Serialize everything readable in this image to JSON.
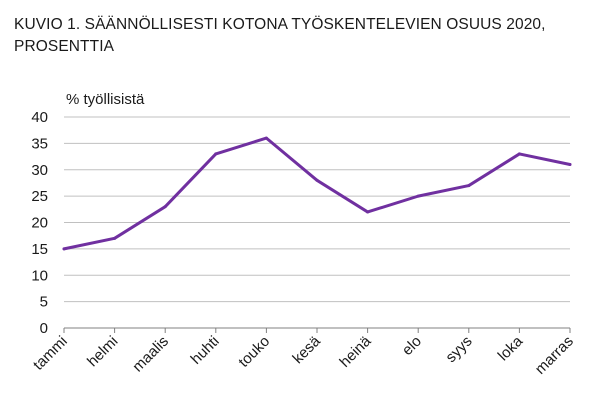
{
  "title_lines": [
    "KUVIO 1. SÄÄNNÖLLISESTI KOTONA TYÖSKENTELEVIEN OSUUS 2020,",
    "PROSENTTIA"
  ],
  "chart_data": {
    "type": "line",
    "ylabel": "% työllisistä",
    "xlabel": "",
    "categories": [
      "tammi",
      "helmi",
      "maalis",
      "huhti",
      "touko",
      "kesä",
      "heinä",
      "elo",
      "syys",
      "loka",
      "marras"
    ],
    "series": [
      {
        "values": [
          15,
          17,
          23,
          33,
          36,
          28,
          22,
          25,
          27,
          33,
          31
        ],
        "color": "#7030a0"
      }
    ],
    "ylim": [
      0,
      40
    ],
    "yticks": [
      0,
      5,
      10,
      15,
      20,
      25,
      30,
      35,
      40
    ],
    "grid": true,
    "gridColor": "#c0c0c0",
    "legend": "none"
  }
}
